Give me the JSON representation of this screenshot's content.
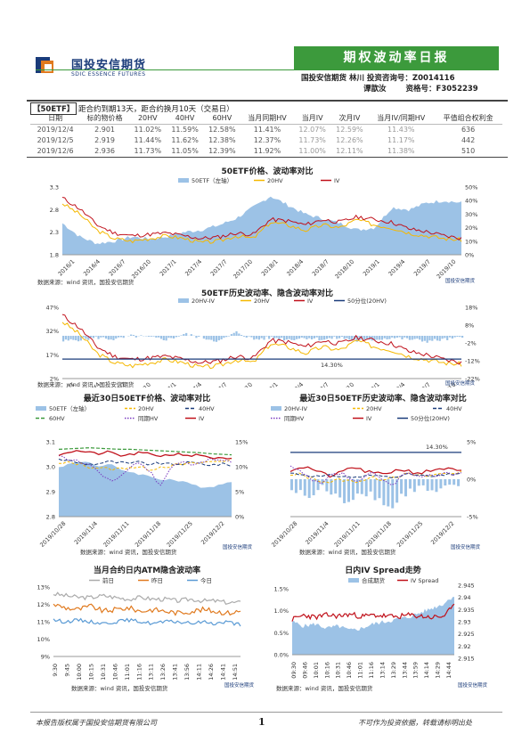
{
  "header": {
    "logo_cn": "国投安信期货",
    "logo_en": "SDIC ESSENCE FUTURES",
    "report_title": "期权波动率日报",
    "author_line1": "国投安信期货  林川  投资咨询号：Z0014116",
    "author2_name": "谭歆汝",
    "author2_id": "资格号：F3052239"
  },
  "summary": {
    "tag": "50ETF",
    "info": "距合约到期13天，距合约换月10天（交易日）",
    "columns": [
      "日期",
      "标的物价格",
      "20HV",
      "40HV",
      "60HV",
      "当月同期HV",
      "当月IV",
      "次月IV",
      "当月IV/同期HV",
      "平值组合权利金"
    ],
    "rows": [
      [
        "2019/12/4",
        "2.901",
        "11.02%",
        "11.59%",
        "12.58%",
        "11.41%",
        "12.07%",
        "12.59%",
        "11.43%",
        "636"
      ],
      [
        "2019/12/5",
        "2.919",
        "11.44%",
        "11.62%",
        "12.38%",
        "12.37%",
        "11.73%",
        "12.26%",
        "11.17%",
        "442"
      ],
      [
        "2019/12/6",
        "2.936",
        "11.73%",
        "11.05%",
        "12.39%",
        "11.92%",
        "11.00%",
        "12.11%",
        "11.38%",
        "510"
      ]
    ]
  },
  "footer": {
    "left": "本报告版权属于国投安信期货有限公司",
    "page": "1",
    "right": "不可作为投资依据，转载请标明出处"
  },
  "source_text": "数据来源：wind 资讯，国投安信期货",
  "mini_logo": "国投安信期货",
  "colors": {
    "green": "#3c9a3c",
    "navy": "#1a3b7a",
    "hv20": "#f5b800",
    "iv": "#c0101a",
    "bar": "#9cc2e6"
  },
  "chart_data": [
    {
      "type": "area",
      "title": "50ETF价格、波动率对比",
      "legend": [
        "50ETF（左轴）",
        "20HV",
        "IV"
      ],
      "y_left_ticks": [
        "3.3",
        "2.8",
        "2.3",
        "1.8"
      ],
      "y_right_ticks": [
        "50%",
        "40%",
        "30%",
        "20%",
        "10%",
        "0%"
      ],
      "x_ticks": [
        "2016/1",
        "2016/4",
        "2016/7",
        "2016/10",
        "2017/1",
        "2017/4",
        "2017/7",
        "2017/10",
        "2018/1",
        "2018/4",
        "2018/7",
        "2018/10",
        "2019/1",
        "2019/4",
        "2019/7",
        "2019/10"
      ],
      "price_series": [
        2.5,
        2.2,
        2.05,
        2.1,
        2.2,
        2.15,
        2.2,
        2.3,
        2.35,
        2.45,
        2.6,
        2.85,
        3.1,
        2.9,
        2.7,
        2.6,
        2.5,
        2.35,
        2.4,
        2.85,
        2.8,
        2.95,
        3.0,
        2.95
      ],
      "hv20_series": [
        38,
        30,
        18,
        12,
        10,
        12,
        14,
        12,
        9,
        10,
        14,
        12,
        24,
        22,
        18,
        22,
        20,
        26,
        22,
        20,
        16,
        14,
        12,
        11
      ],
      "iv_series": [
        42,
        34,
        22,
        16,
        14,
        15,
        16,
        14,
        12,
        13,
        16,
        15,
        26,
        25,
        22,
        26,
        24,
        28,
        26,
        24,
        19,
        17,
        14,
        12
      ]
    },
    {
      "type": "line",
      "title": "50ETF历史波动率、隐含波动率对比",
      "legend": [
        "20HV-IV",
        "20HV",
        "IV",
        "50分位(20HV)"
      ],
      "y_left_ticks": [
        "47%",
        "32%",
        "17%",
        "2%"
      ],
      "y_right_ticks": [
        "18%",
        "8%",
        "-2%",
        "-12%",
        "-22%"
      ],
      "x_ticks": [
        "2016/1",
        "2016/4",
        "2016/7",
        "2016/10",
        "2017/1",
        "2017/4",
        "2017/7",
        "2017/10",
        "2018/1",
        "2018/4",
        "2018/7",
        "2018/10",
        "2019/1",
        "2019/4",
        "2019/7",
        "2019/10"
      ],
      "median_label": "14.30%",
      "median_value": 14.3,
      "hv20_series": [
        38,
        30,
        18,
        12,
        10,
        12,
        14,
        12,
        9,
        10,
        14,
        12,
        24,
        22,
        18,
        22,
        20,
        26,
        22,
        20,
        16,
        14,
        12,
        11
      ],
      "iv_series": [
        42,
        34,
        22,
        16,
        14,
        15,
        16,
        14,
        12,
        13,
        16,
        15,
        26,
        25,
        22,
        26,
        24,
        28,
        26,
        24,
        19,
        17,
        14,
        12
      ]
    },
    {
      "type": "line",
      "title": "最近30日50ETF价格、波动率对比",
      "legend": [
        "50ETF（左轴）",
        "20HV",
        "40HV",
        "60HV",
        "同期HV",
        "IV"
      ],
      "y_left_ticks": [
        "3.1",
        "3.0",
        "2.9",
        "2.8"
      ],
      "y_right_ticks": [
        "15%",
        "10%",
        "5%",
        "0%"
      ],
      "x_ticks": [
        "2019/10/28",
        "2019/11/4",
        "2019/11/11",
        "2019/11/18",
        "2019/11/25",
        "2019/12/2"
      ],
      "price_series": [
        3.0,
        3.01,
        3.02,
        3.02,
        3.0,
        3.01,
        2.99,
        2.98,
        2.97,
        2.96,
        2.95,
        2.95,
        2.94,
        2.93,
        2.92,
        2.92,
        2.93,
        2.94
      ],
      "iv_series": [
        12.5,
        13,
        13.2,
        12.8,
        12.6,
        13,
        12.2,
        12.4,
        12.8,
        12.5,
        12.2,
        12.4,
        12.6,
        12.2,
        12.4,
        11.8,
        11.6,
        11.5
      ],
      "hv60_series": [
        13.5,
        13.6,
        13.7,
        13.8,
        13.7,
        13.6,
        13.5,
        13.5,
        13.4,
        13.3,
        13.2,
        13.1,
        13.0,
        12.9,
        12.8,
        12.6,
        12.5,
        12.4
      ]
    },
    {
      "type": "bar",
      "title": "最近30日50ETF历史波动率、隐含波动率对比",
      "legend": [
        "20HV-IV",
        "20HV",
        "40HV",
        "同期HV",
        "IV",
        "50分位(20HV)"
      ],
      "y_left_ticks": [],
      "y_right_ticks": [
        "5%",
        "0%",
        "-5%"
      ],
      "x_ticks": [
        "2019/10/28",
        "2019/11/4",
        "2019/11/11",
        "2019/11/18",
        "2019/11/25",
        "2019/12/2"
      ],
      "median_label": "14.30%"
    },
    {
      "type": "line",
      "title": "当月合约日内ATM隐含波动率",
      "legend": [
        "前日",
        "昨日",
        "今日"
      ],
      "y_ticks": [
        "13%",
        "12%",
        "11%",
        "10%",
        "9%"
      ],
      "x_ticks": [
        "9:30",
        "9:45",
        "10:00",
        "10:15",
        "10:31",
        "10:46",
        "11:01",
        "11:16",
        "13:11",
        "13:26",
        "13:41",
        "13:56",
        "14:11",
        "14:26",
        "14:41",
        "14:51"
      ],
      "prev_series": [
        12.6,
        12.5,
        12.4,
        12.4,
        12.5,
        12.4,
        12.3,
        12.4,
        12.3,
        12.3,
        12.2,
        12.3,
        12.2,
        12.2,
        12.1,
        12.1
      ],
      "yest_series": [
        12.0,
        11.8,
        11.7,
        11.9,
        11.6,
        11.7,
        11.8,
        11.6,
        11.7,
        11.6,
        11.5,
        11.6,
        11.7,
        11.6,
        11.5,
        11.6
      ],
      "today_series": [
        11.1,
        11.0,
        11.1,
        11.0,
        10.9,
        11.0,
        11.1,
        11.0,
        10.9,
        11.0,
        11.0,
        10.9,
        11.0,
        10.9,
        11.0,
        10.8
      ]
    },
    {
      "type": "area",
      "title": "日内IV Spread走势",
      "legend": [
        "合成期货",
        "IV Spread"
      ],
      "y_left_ticks": [
        "1.5%",
        "1.0%",
        "0.5%",
        "0.0%"
      ],
      "y_right_ticks": [
        "2.945",
        "2.94",
        "2.935",
        "2.93",
        "2.925",
        "2.92",
        "2.915"
      ],
      "x_ticks": [
        "09:30",
        "09:46",
        "10:01",
        "10:16",
        "10:31",
        "10:46",
        "11:01",
        "11:16",
        "13:14",
        "13:29",
        "13:44",
        "13:59",
        "14:14",
        "14:29",
        "14:44"
      ],
      "futures_series": [
        2.93,
        2.928,
        2.929,
        2.927,
        2.928,
        2.926,
        2.927,
        2.929,
        2.93,
        2.931,
        2.932,
        2.934,
        2.936,
        2.938,
        2.942
      ],
      "spread_series": [
        0.8,
        0.9,
        0.85,
        0.9,
        0.88,
        0.92,
        0.87,
        0.9,
        0.88,
        0.86,
        0.9,
        0.88,
        0.85,
        0.87,
        1.1
      ]
    }
  ]
}
